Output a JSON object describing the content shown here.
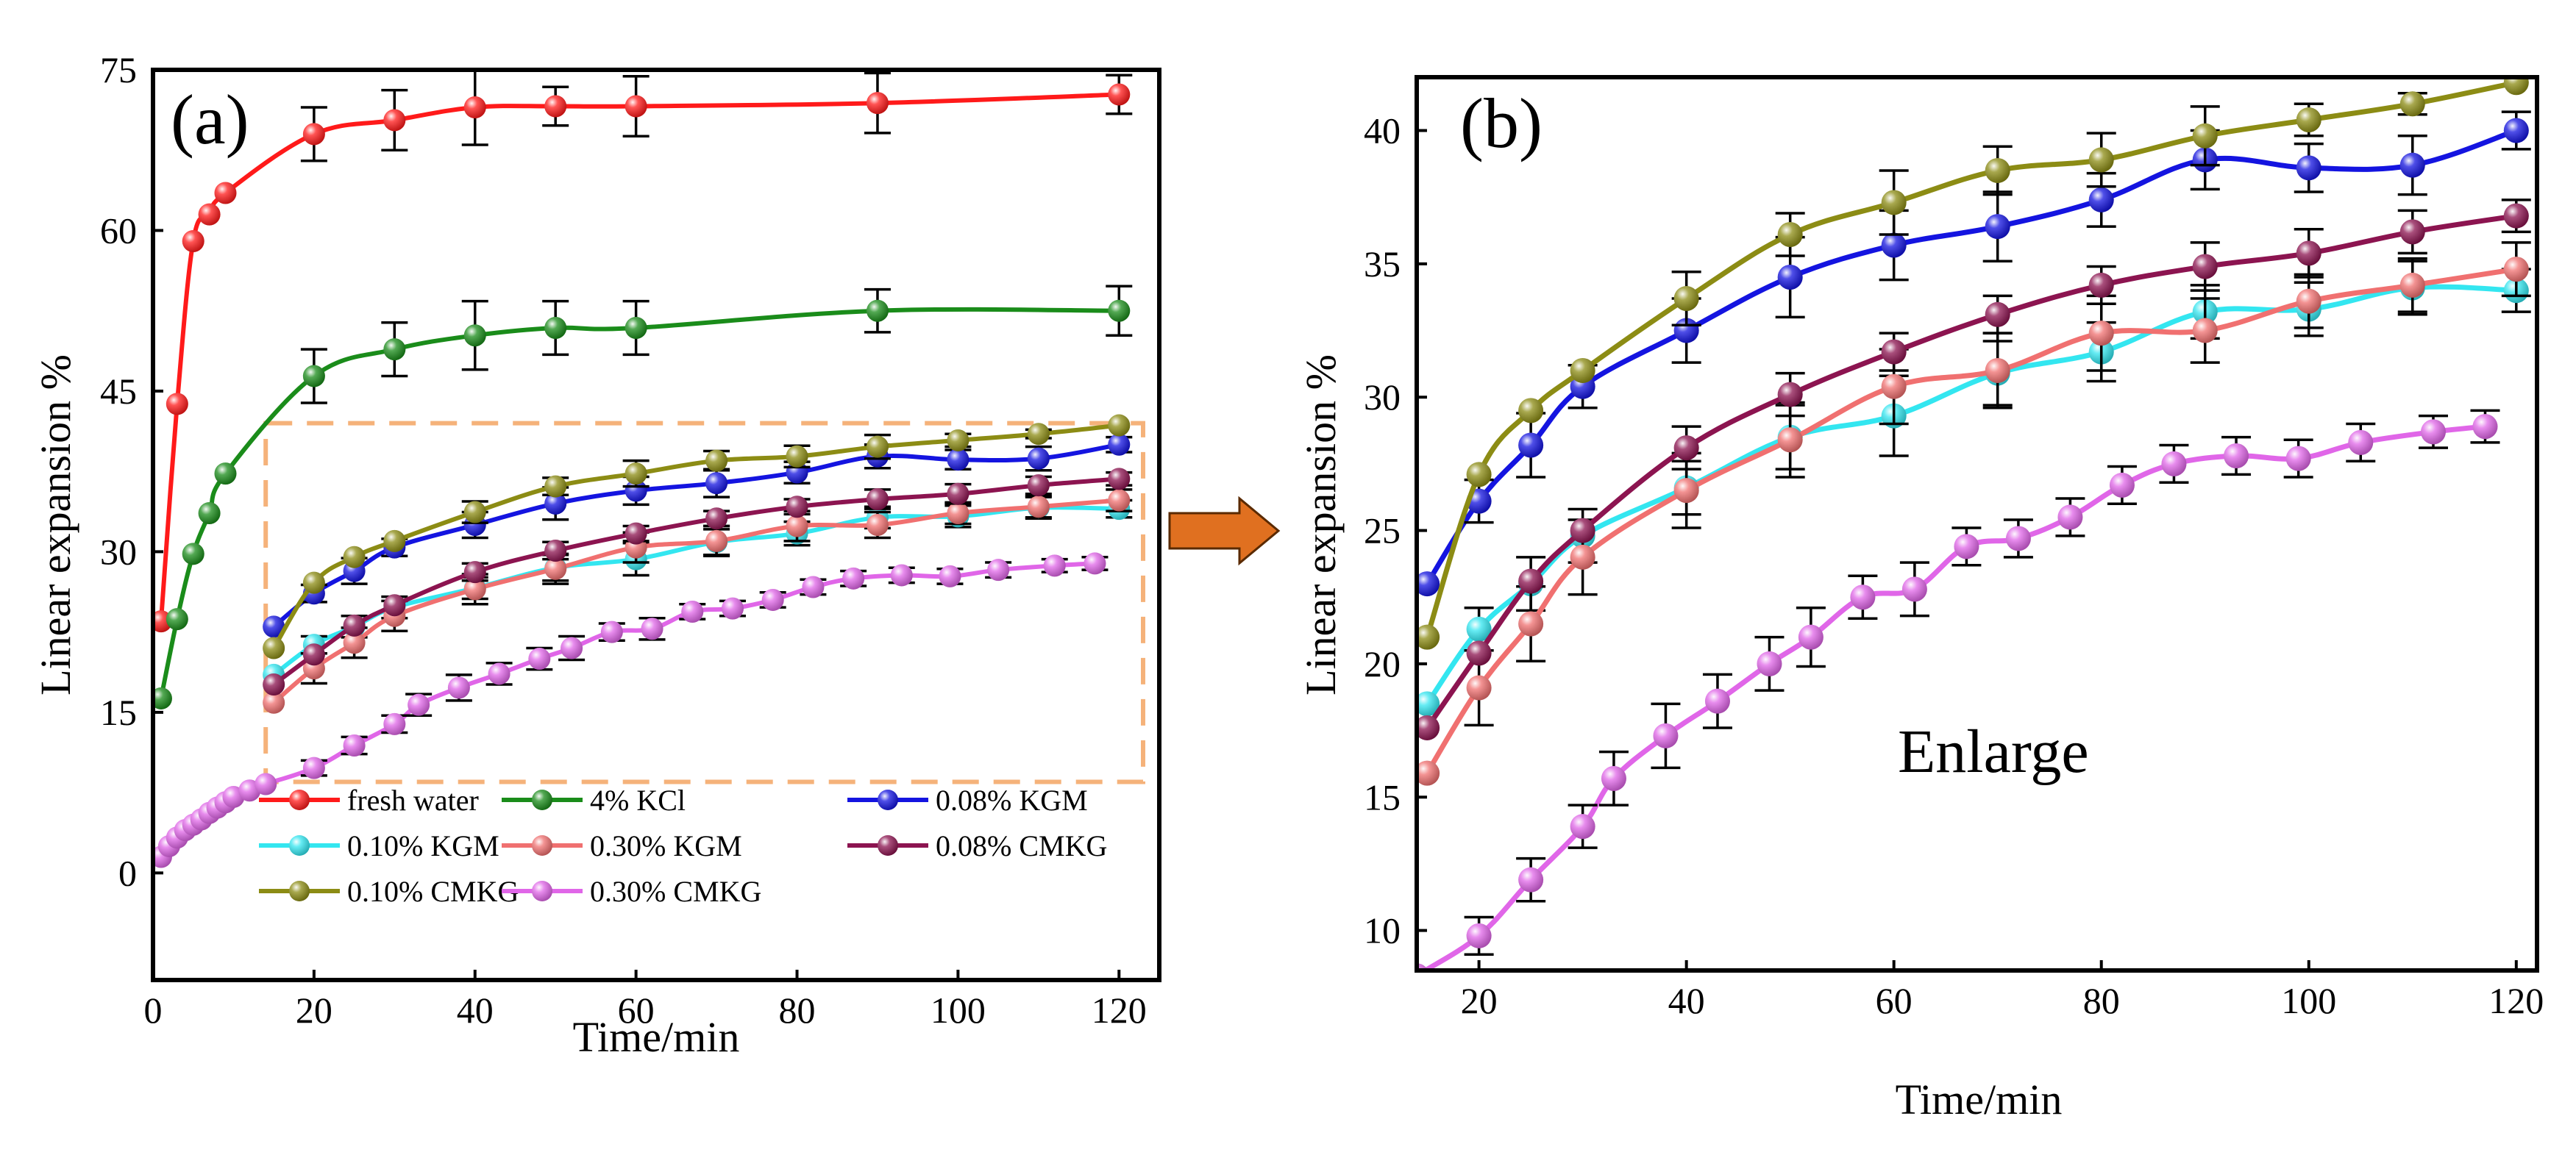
{
  "arrow_color": "#E07020",
  "highlight_color": "#F5B27A",
  "chart_data": [
    {
      "panel": "(a)",
      "type": "line",
      "xlabel": "Time/min",
      "ylabel": "Linear expansion %",
      "xlim": [
        0,
        125
      ],
      "ylim": [
        -10,
        75
      ],
      "xticks": [
        0,
        20,
        40,
        60,
        80,
        100,
        120
      ],
      "yticks": [
        0,
        15,
        30,
        45,
        60,
        75
      ],
      "highlight_region": {
        "x": [
          14,
          125
        ],
        "y": [
          8.5,
          42
        ]
      },
      "legend_position": "bottom",
      "series": [
        {
          "name": "fresh water",
          "color": "#FF1A1A",
          "x": [
            1,
            3,
            5,
            7,
            9,
            20,
            30,
            40,
            50,
            60,
            90,
            120
          ],
          "y": [
            23.5,
            43.8,
            59,
            61.5,
            63.5,
            69,
            70.3,
            71.5,
            71.6,
            71.6,
            71.9,
            72.7
          ],
          "err": [
            0,
            0,
            0,
            0,
            0,
            2.5,
            2.8,
            3.5,
            1.8,
            2.8,
            2.8,
            1.8
          ]
        },
        {
          "name": "4% KCl",
          "color": "#1A8C1A",
          "x": [
            1,
            3,
            5,
            7,
            9,
            20,
            30,
            40,
            50,
            60,
            90,
            120
          ],
          "y": [
            16.3,
            23.7,
            29.8,
            33.6,
            37.3,
            46.4,
            48.9,
            50.2,
            50.9,
            50.9,
            52.5,
            52.5
          ],
          "err": [
            0,
            0,
            0,
            0,
            0,
            2.5,
            2.5,
            3.2,
            2.5,
            2.5,
            2.0,
            2.3
          ]
        },
        {
          "name": "0.08% KGM",
          "color": "#1414E0",
          "x": [
            15,
            20,
            25,
            30,
            40,
            50,
            60,
            70,
            80,
            90,
            100,
            110,
            120
          ],
          "y": [
            23,
            26.1,
            28.2,
            30.4,
            32.5,
            34.5,
            35.7,
            36.4,
            37.4,
            38.9,
            38.6,
            38.7,
            40
          ],
          "err": [
            0,
            0.8,
            1.2,
            0.8,
            1.2,
            1.5,
            1.3,
            1.3,
            1.0,
            1.1,
            0.9,
            1.1,
            0.7
          ]
        },
        {
          "name": "0.10% KGM",
          "color": "#33E6F0",
          "x": [
            15,
            20,
            25,
            30,
            40,
            50,
            60,
            70,
            80,
            90,
            100,
            110,
            120
          ],
          "y": [
            18.5,
            21.3,
            23,
            24.8,
            26.6,
            28.5,
            29.3,
            30.9,
            31.7,
            33.2,
            33.3,
            34.1,
            34
          ],
          "err": [
            0,
            0.8,
            1.0,
            1.0,
            1.0,
            1.2,
            1.5,
            1.2,
            1.1,
            1.0,
            1.0,
            1.0,
            0.8
          ]
        },
        {
          "name": "0.30% KGM",
          "color": "#F07070",
          "x": [
            15,
            20,
            25,
            30,
            40,
            50,
            60,
            70,
            80,
            90,
            100,
            110,
            120
          ],
          "y": [
            15.9,
            19.1,
            21.5,
            24,
            26.5,
            28.4,
            30.4,
            31,
            32.4,
            32.5,
            33.6,
            34.2,
            34.8
          ],
          "err": [
            0,
            1.4,
            1.4,
            1.4,
            1.4,
            1.4,
            1.4,
            1.4,
            1.4,
            1.2,
            1.0,
            1.0,
            1.0
          ]
        },
        {
          "name": "0.08% CMKG",
          "color": "#8C1450",
          "x": [
            15,
            20,
            25,
            30,
            40,
            50,
            60,
            70,
            80,
            90,
            100,
            110,
            120
          ],
          "y": [
            17.6,
            20.4,
            23.1,
            25,
            28.1,
            30.1,
            31.7,
            33.1,
            34.2,
            34.9,
            35.4,
            36.2,
            36.8
          ],
          "err": [
            0,
            0,
            0,
            0,
            0.8,
            0.8,
            0.7,
            0.7,
            0.7,
            0.9,
            0.9,
            0.8,
            0.6
          ]
        },
        {
          "name": "0.10% CMKG",
          "color": "#8C8C14",
          "x": [
            15,
            20,
            25,
            30,
            40,
            50,
            60,
            70,
            80,
            90,
            100,
            110,
            120
          ],
          "y": [
            21,
            27.1,
            29.5,
            31,
            33.7,
            36.1,
            37.3,
            38.5,
            38.9,
            39.8,
            40.4,
            41,
            41.8
          ],
          "err": [
            0,
            0,
            0,
            0,
            1.0,
            0.8,
            1.2,
            0.9,
            1.0,
            1.1,
            0.6,
            0.4,
            0
          ]
        },
        {
          "name": "0.30% CMKG",
          "color": "#E066E8",
          "x": [
            1,
            2,
            3,
            4,
            5,
            6,
            7,
            8,
            9,
            10,
            12,
            14,
            20,
            25,
            30,
            33,
            38,
            43,
            48,
            52,
            57,
            62,
            67,
            72,
            77,
            82,
            87,
            93,
            99,
            105,
            112,
            117
          ],
          "y": [
            1.5,
            2.5,
            3.3,
            4,
            4.5,
            5,
            5.6,
            6.1,
            6.6,
            7.1,
            7.7,
            8.3,
            9.8,
            11.9,
            13.9,
            15.7,
            17.3,
            18.6,
            20,
            21,
            22.5,
            22.8,
            24.4,
            24.7,
            25.5,
            26.7,
            27.5,
            27.8,
            27.7,
            28.3,
            28.7,
            28.9
          ],
          "err": [
            0,
            0,
            0,
            0,
            0,
            0,
            0,
            0,
            0,
            0,
            0,
            0,
            0.7,
            0.8,
            0.8,
            1.0,
            1.2,
            1.0,
            1.0,
            1.1,
            0.8,
            1.0,
            0.7,
            0.7,
            0.7,
            0.7,
            0.7,
            0.7,
            0.7,
            0.7,
            0.6,
            0.6
          ]
        }
      ]
    },
    {
      "panel": "(b)",
      "type": "line",
      "xlabel": "Time/min",
      "ylabel": "Linear expansion %",
      "annotation": "Enlarge",
      "xlim": [
        14,
        122
      ],
      "ylim": [
        8.5,
        42
      ],
      "xticks": [
        20,
        40,
        60,
        80,
        100,
        120
      ],
      "yticks": [
        10,
        15,
        20,
        25,
        30,
        35,
        40
      ],
      "series_ref": "same series as panel (a), zoomed"
    }
  ],
  "legend": [
    {
      "label": "fresh water",
      "color": "#FF1A1A"
    },
    {
      "label": "4% KCl",
      "color": "#1A8C1A"
    },
    {
      "label": "0.08% KGM",
      "color": "#1414E0"
    },
    {
      "label": "0.10% KGM",
      "color": "#33E6F0"
    },
    {
      "label": "0.30% KGM",
      "color": "#F07070"
    },
    {
      "label": "0.08% CMKG",
      "color": "#8C1450"
    },
    {
      "label": "0.10% CMKG",
      "color": "#8C8C14"
    },
    {
      "label": "0.30% CMKG",
      "color": "#E066E8"
    }
  ]
}
